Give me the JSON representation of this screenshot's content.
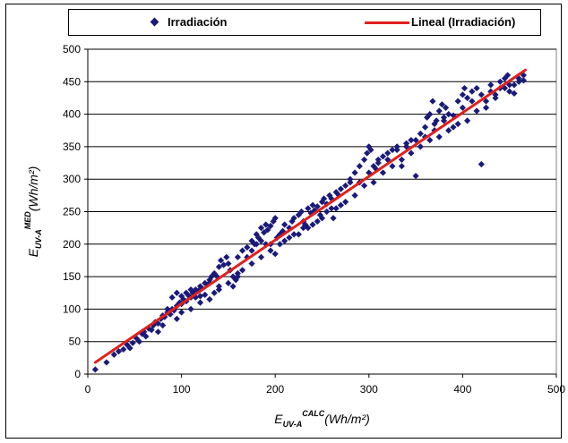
{
  "chart_data": {
    "type": "scatter",
    "xlim": [
      0,
      500
    ],
    "ylim": [
      0,
      500
    ],
    "xticks": [
      0,
      100,
      200,
      300,
      400,
      500
    ],
    "yticks": [
      0,
      50,
      100,
      150,
      200,
      250,
      300,
      350,
      400,
      450,
      500
    ],
    "grid": "horizontal",
    "legend_position": "top",
    "xlabel": {
      "base": "E",
      "sub": "UV-A",
      "sup": "CALC",
      "unit": "(Wh/m²)"
    },
    "ylabel": {
      "base": "E",
      "sub": "UV-A",
      "sup": "MED",
      "unit": "(Wh/m²)"
    },
    "series": [
      {
        "name": "Irradiación",
        "kind": "scatter",
        "marker": "diamond",
        "color": "#1a1a7a",
        "points": [
          [
            8,
            7
          ],
          [
            20,
            18
          ],
          [
            28,
            30
          ],
          [
            33,
            35
          ],
          [
            38,
            38
          ],
          [
            42,
            45
          ],
          [
            45,
            40
          ],
          [
            48,
            48
          ],
          [
            52,
            55
          ],
          [
            55,
            50
          ],
          [
            58,
            62
          ],
          [
            60,
            65
          ],
          [
            62,
            58
          ],
          [
            65,
            70
          ],
          [
            68,
            68
          ],
          [
            70,
            75
          ],
          [
            72,
            80
          ],
          [
            75,
            78
          ],
          [
            78,
            85
          ],
          [
            80,
            90
          ],
          [
            82,
            88
          ],
          [
            85,
            95
          ],
          [
            88,
            92
          ],
          [
            90,
            100
          ],
          [
            92,
            98
          ],
          [
            95,
            105
          ],
          [
            98,
            110
          ],
          [
            100,
            108
          ],
          [
            102,
            115
          ],
          [
            105,
            112
          ],
          [
            108,
            120
          ],
          [
            110,
            118
          ],
          [
            112,
            125
          ],
          [
            115,
            130
          ],
          [
            118,
            128
          ],
          [
            120,
            135
          ],
          [
            122,
            132
          ],
          [
            125,
            140
          ],
          [
            128,
            138
          ],
          [
            130,
            145
          ],
          [
            132,
            150
          ],
          [
            135,
            155
          ],
          [
            138,
            150
          ],
          [
            140,
            165
          ],
          [
            142,
            175
          ],
          [
            145,
            168
          ],
          [
            148,
            180
          ],
          [
            150,
            170
          ],
          [
            152,
            160
          ],
          [
            155,
            150
          ],
          [
            158,
            145
          ],
          [
            160,
            180
          ],
          [
            165,
            190
          ],
          [
            170,
            195
          ],
          [
            175,
            205
          ],
          [
            178,
            200
          ],
          [
            180,
            215
          ],
          [
            182,
            210
          ],
          [
            185,
            225
          ],
          [
            188,
            218
          ],
          [
            190,
            230
          ],
          [
            192,
            222
          ],
          [
            195,
            228
          ],
          [
            198,
            235
          ],
          [
            200,
            240
          ],
          [
            202,
            210
          ],
          [
            205,
            215
          ],
          [
            208,
            220
          ],
          [
            210,
            230
          ],
          [
            215,
            225
          ],
          [
            218,
            235
          ],
          [
            220,
            240
          ],
          [
            225,
            245
          ],
          [
            228,
            250
          ],
          [
            230,
            235
          ],
          [
            232,
            230
          ],
          [
            235,
            255
          ],
          [
            238,
            248
          ],
          [
            240,
            260
          ],
          [
            242,
            252
          ],
          [
            245,
            258
          ],
          [
            248,
            245
          ],
          [
            250,
            265
          ],
          [
            252,
            270
          ],
          [
            255,
            262
          ],
          [
            258,
            275
          ],
          [
            260,
            270
          ],
          [
            262,
            240
          ],
          [
            265,
            280
          ],
          [
            268,
            275
          ],
          [
            270,
            285
          ],
          [
            275,
            290
          ],
          [
            280,
            300
          ],
          [
            285,
            310
          ],
          [
            290,
            320
          ],
          [
            295,
            330
          ],
          [
            298,
            340
          ],
          [
            300,
            350
          ],
          [
            302,
            345
          ],
          [
            305,
            320
          ],
          [
            308,
            315
          ],
          [
            310,
            330
          ],
          [
            315,
            335
          ],
          [
            320,
            340
          ],
          [
            325,
            345
          ],
          [
            330,
            350
          ],
          [
            335,
            320
          ],
          [
            340,
            355
          ],
          [
            345,
            360
          ],
          [
            350,
            305
          ],
          [
            355,
            370
          ],
          [
            360,
            380
          ],
          [
            362,
            395
          ],
          [
            365,
            400
          ],
          [
            368,
            420
          ],
          [
            370,
            375
          ],
          [
            372,
            390
          ],
          [
            375,
            405
          ],
          [
            378,
            415
          ],
          [
            380,
            395
          ],
          [
            382,
            410
          ],
          [
            385,
            400
          ],
          [
            390,
            380
          ],
          [
            395,
            420
          ],
          [
            400,
            430
          ],
          [
            402,
            440
          ],
          [
            405,
            425
          ],
          [
            410,
            435
          ],
          [
            415,
            440
          ],
          [
            420,
            323
          ],
          [
            425,
            410
          ],
          [
            430,
            445
          ],
          [
            435,
            430
          ],
          [
            440,
            440
          ],
          [
            445,
            455
          ],
          [
            448,
            460
          ],
          [
            450,
            435
          ],
          [
            455,
            445
          ],
          [
            460,
            450
          ],
          [
            465,
            452
          ],
          [
            85,
            100
          ],
          [
            90,
            118
          ],
          [
            95,
            125
          ],
          [
            100,
            95
          ],
          [
            105,
            125
          ],
          [
            110,
            130
          ],
          [
            115,
            118
          ],
          [
            120,
            120
          ],
          [
            125,
            122
          ],
          [
            130,
            140
          ],
          [
            135,
            125
          ],
          [
            140,
            135
          ],
          [
            150,
            140
          ],
          [
            155,
            135
          ],
          [
            160,
            150
          ],
          [
            170,
            180
          ],
          [
            175,
            190
          ],
          [
            180,
            200
          ],
          [
            185,
            205
          ],
          [
            190,
            200
          ],
          [
            195,
            200
          ],
          [
            200,
            185
          ],
          [
            210,
            205
          ],
          [
            220,
            215
          ],
          [
            230,
            225
          ],
          [
            240,
            230
          ],
          [
            250,
            240
          ],
          [
            260,
            255
          ],
          [
            270,
            260
          ],
          [
            280,
            295
          ],
          [
            290,
            295
          ],
          [
            300,
            310
          ],
          [
            310,
            325
          ],
          [
            320,
            330
          ],
          [
            330,
            345
          ],
          [
            340,
            350
          ],
          [
            350,
            360
          ],
          [
            360,
            365
          ],
          [
            370,
            385
          ],
          [
            380,
            390
          ],
          [
            390,
            398
          ],
          [
            400,
            410
          ],
          [
            410,
            420
          ],
          [
            420,
            430
          ],
          [
            430,
            435
          ],
          [
            440,
            450
          ],
          [
            450,
            445
          ],
          [
            455,
            432
          ],
          [
            460,
            455
          ],
          [
            465,
            460
          ],
          [
            75,
            65
          ],
          [
            80,
            75
          ],
          [
            95,
            85
          ],
          [
            100,
            120
          ],
          [
            110,
            100
          ],
          [
            120,
            110
          ],
          [
            130,
            115
          ],
          [
            140,
            130
          ],
          [
            160,
            155
          ],
          [
            165,
            160
          ],
          [
            175,
            170
          ],
          [
            185,
            180
          ],
          [
            195,
            190
          ],
          [
            205,
            200
          ],
          [
            215,
            210
          ],
          [
            225,
            215
          ],
          [
            235,
            225
          ],
          [
            245,
            235
          ],
          [
            255,
            250
          ],
          [
            265,
            255
          ],
          [
            275,
            265
          ],
          [
            285,
            275
          ],
          [
            295,
            290
          ],
          [
            305,
            295
          ],
          [
            315,
            310
          ],
          [
            325,
            320
          ],
          [
            335,
            330
          ],
          [
            345,
            340
          ],
          [
            355,
            350
          ],
          [
            365,
            360
          ],
          [
            375,
            365
          ],
          [
            385,
            375
          ],
          [
            395,
            385
          ],
          [
            405,
            390
          ],
          [
            415,
            405
          ],
          [
            425,
            420
          ],
          [
            435,
            425
          ],
          [
            445,
            440
          ]
        ]
      },
      {
        "name": "Lineal (Irradiación)",
        "kind": "line",
        "color": "#e0201c",
        "points": [
          [
            8,
            18
          ],
          [
            467,
            468
          ]
        ]
      }
    ]
  }
}
